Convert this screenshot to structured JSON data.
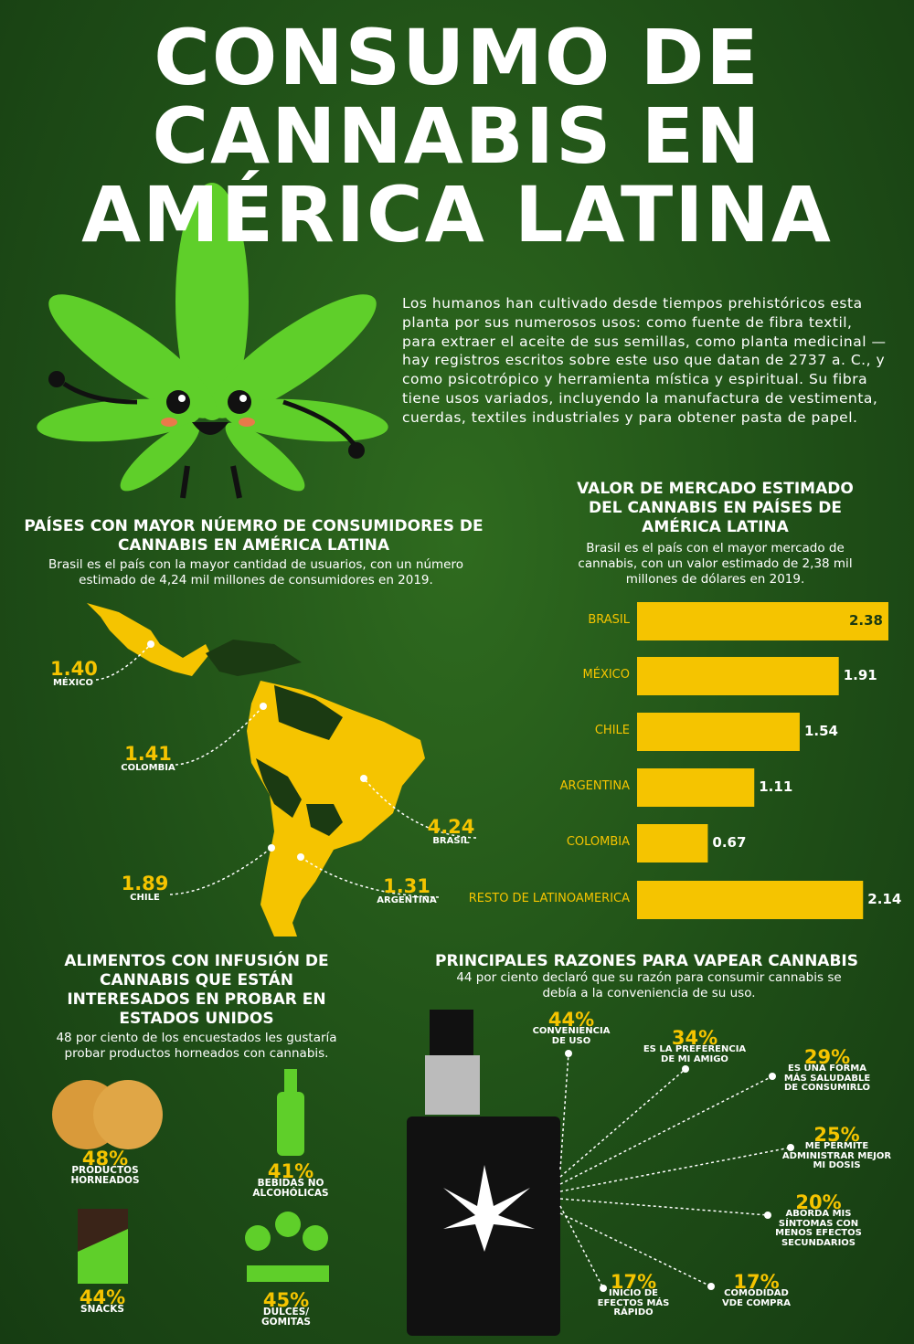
{
  "title": [
    "CONSUMO DE",
    "CANNABIS EN",
    "AMÉRICA LATINA"
  ],
  "intro": "Los humanos han cultivado desde tiempos prehistóricos esta planta por sus numerosos usos: como fuente de fibra textil, para extraer el aceite de sus semillas, como planta medicinal —hay registros escritos sobre este uso que datan de 2737 a. C., y como psicotrópico y herramienta mística y espiritual. Su fibra tiene usos variados, incluyendo la manufactura de vestimenta, cuerdas, textiles industriales y para obtener pasta de papel.",
  "consumers": {
    "title": "PAÍSES CON MAYOR NÚEMRO DE CONSUMIDORES DE CANNABIS EN AMÉRICA LATINA",
    "subtitle": "Brasil es el país con la mayor cantidad de usuarios, con un número estimado de 4,24 mil millones de consumidores en 2019.",
    "points": [
      {
        "value": "1.40",
        "label": "MÉXICO"
      },
      {
        "value": "1.41",
        "label": "COLOMBIA"
      },
      {
        "value": "4.24",
        "label": "BRASIL"
      },
      {
        "value": "1.89",
        "label": "CHILE"
      },
      {
        "value": "1.31",
        "label": "ARGENTINA"
      }
    ]
  },
  "chart_data": {
    "type": "bar",
    "orientation": "horizontal",
    "title": "VALOR DE MERCADO ESTIMADO DEL CANNABIS EN PAÍSES DE AMÉRICA LATINA",
    "subtitle": "Brasil es el país con el mayor mercado de cannabis, con un valor estimado de 2,38 mil millones de dólares en 2019.",
    "categories": [
      "BRASIL",
      "MÉXICO",
      "CHILE",
      "ARGENTINA",
      "COLOMBIA",
      "RESTO DE LATINOAMERICA"
    ],
    "values": [
      2.38,
      1.91,
      1.54,
      1.11,
      0.67,
      2.14
    ],
    "color": "#f5c400"
  },
  "foods": {
    "title": "ALIMENTOS CON INFUSIÓN DE CANNABIS QUE ESTÁN INTERESADOS EN PROBAR EN ESTADOS UNIDOS",
    "subtitle": "48 por ciento de los encuestados les gustaría probar productos horneados con cannabis.",
    "items": [
      {
        "percent": "48%",
        "label": "PRODUCTOS HORNEADOS"
      },
      {
        "percent": "41%",
        "label": "BEBIDAS NO ALCOHÓLICAS"
      },
      {
        "percent": "44%",
        "label": "SNACKS"
      },
      {
        "percent": "45%",
        "label": "DULCES/ GOMITAS"
      }
    ]
  },
  "vape": {
    "title": "PRINCIPALES  RAZONES PARA VAPEAR CANNABIS",
    "subtitle": "44 por ciento declaró que su razón para consumir cannabis se debía a la conveniencia de su uso.",
    "items": [
      {
        "percent": "44%",
        "label": "CONVENIENCIA DE USO"
      },
      {
        "percent": "34%",
        "label": "ES LA PREFERENCIA DE MI AMIGO"
      },
      {
        "percent": "29%",
        "label": "ES UNA FORMA MÁS SALUDABLE DE CONSUMIRLO"
      },
      {
        "percent": "25%",
        "label": "ME PERMITE ADMINISTRAR MEJOR MI DOSIS"
      },
      {
        "percent": "20%",
        "label": "ABORDA MIS SÍNTOMAS CON MENOS EFECTOS SECUNDARIOS"
      },
      {
        "percent": "17%",
        "label": "INICIO DE EFECTOS MÁS RÁPIDO"
      },
      {
        "percent": "17%",
        "label": "COMODIDAD VDE COMPRA"
      }
    ]
  }
}
